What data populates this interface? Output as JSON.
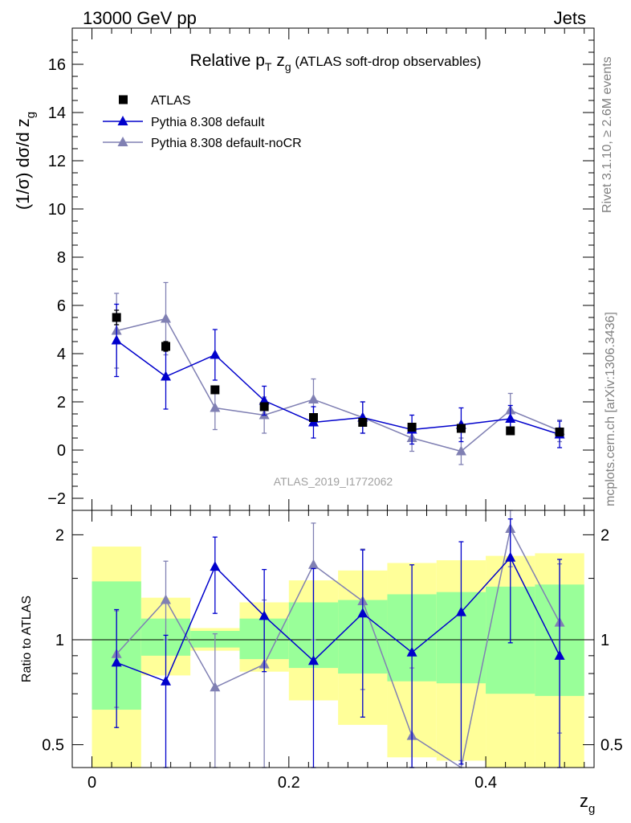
{
  "header": {
    "left": "13000 GeV pp",
    "right": "Jets"
  },
  "side_text": {
    "rivet": "Rivet 3.1.10, ≥ 2.6M events",
    "mcplots": "mcplots.cern.ch [arXiv:1306.3436]"
  },
  "watermark": "ATLAS_2019_I1772062",
  "colors": {
    "data": "#000000",
    "pythia_default": "#0000cc",
    "pythia_nocr": "#8080b3",
    "band_inner": "#99ff99",
    "band_outer": "#ffff99"
  },
  "chart_data": [
    {
      "type": "line",
      "title_main": "Relative p",
      "title_sub_T": "T",
      "title_z": " z",
      "title_sub_g": "g",
      "title_rest": " (ATLAS soft-drop observables)",
      "ylabel_main": "(1/σ) dσ/d z",
      "ylabel_sub": "g",
      "xlim": [
        -0.02,
        0.51
      ],
      "ylim": [
        -2.5,
        17.5
      ],
      "yticks": [
        -2,
        0,
        2,
        4,
        6,
        8,
        10,
        12,
        14,
        16
      ],
      "x": [
        0.025,
        0.075,
        0.125,
        0.175,
        0.225,
        0.275,
        0.325,
        0.375,
        0.425,
        0.475
      ],
      "series": [
        {
          "name": "ATLAS",
          "marker": "square",
          "values": [
            5.5,
            4.3,
            2.5,
            1.8,
            1.35,
            1.15,
            0.95,
            0.9,
            0.8,
            0.75
          ],
          "err": [
            0.3,
            0.2,
            0.15,
            0.15,
            0.12,
            0.12,
            0.1,
            0.1,
            0.1,
            0.1
          ]
        },
        {
          "name": "Pythia 8.308 default",
          "marker": "triangle",
          "values": [
            4.55,
            3.05,
            3.95,
            2.05,
            1.15,
            1.35,
            0.85,
            1.05,
            1.3,
            0.65
          ],
          "err": [
            1.5,
            1.35,
            1.05,
            0.6,
            0.65,
            0.65,
            0.6,
            0.7,
            0.55,
            0.55
          ]
        },
        {
          "name": "Pythia 8.308 default-noCR",
          "marker": "triangle",
          "values": [
            4.95,
            5.45,
            1.75,
            1.45,
            2.1,
            1.35,
            0.5,
            -0.05,
            1.65,
            0.8
          ],
          "err": [
            1.55,
            1.5,
            0.9,
            0.75,
            0.85,
            0.65,
            0.55,
            0.55,
            0.7,
            0.45
          ]
        }
      ]
    },
    {
      "type": "line",
      "xlabel_main": "z",
      "xlabel_sub": "g",
      "ylabel": "Ratio to ATLAS",
      "log_y": true,
      "ylim": [
        0.43,
        2.35
      ],
      "yticks": [
        0.5,
        1,
        2
      ],
      "xlim": [
        -0.02,
        0.51
      ],
      "xticks": [
        0,
        0.2,
        0.4
      ],
      "bins": [
        [
          0,
          0.05
        ],
        [
          0.05,
          0.1
        ],
        [
          0.1,
          0.15
        ],
        [
          0.15,
          0.2
        ],
        [
          0.2,
          0.25
        ],
        [
          0.25,
          0.3
        ],
        [
          0.3,
          0.35
        ],
        [
          0.35,
          0.4
        ],
        [
          0.4,
          0.45
        ],
        [
          0.45,
          0.5
        ]
      ],
      "band_inner": [
        [
          0.63,
          1.47
        ],
        [
          0.9,
          1.15
        ],
        [
          0.95,
          1.06
        ],
        [
          0.88,
          1.15
        ],
        [
          0.83,
          1.28
        ],
        [
          0.8,
          1.3
        ],
        [
          0.76,
          1.35
        ],
        [
          0.75,
          1.37
        ],
        [
          0.7,
          1.42
        ],
        [
          0.69,
          1.44
        ]
      ],
      "band_outer": [
        [
          0.25,
          1.85
        ],
        [
          0.79,
          1.32
        ],
        [
          0.93,
          1.08
        ],
        [
          0.81,
          1.28
        ],
        [
          0.67,
          1.48
        ],
        [
          0.57,
          1.58
        ],
        [
          0.46,
          1.66
        ],
        [
          0.45,
          1.69
        ],
        [
          0.41,
          1.74
        ],
        [
          0.41,
          1.77
        ]
      ],
      "x": [
        0.025,
        0.075,
        0.125,
        0.175,
        0.225,
        0.275,
        0.325,
        0.375,
        0.425,
        0.475
      ],
      "series": [
        {
          "name": "Pythia 8.308 default",
          "values": [
            0.86,
            0.76,
            1.62,
            1.17,
            0.87,
            1.19,
            0.92,
            1.2,
            1.72,
            0.9
          ],
          "err_lo": [
            0.3,
            0.42,
            0.43,
            0.36,
            0.5,
            0.59,
            0.55,
            0.76,
            0.74,
            0.55
          ],
          "err_hi": [
            0.36,
            0.27,
            0.35,
            0.42,
            0.73,
            0.62,
            0.72,
            0.71,
            0.5,
            0.8
          ]
        },
        {
          "name": "Pythia 8.308 default-noCR",
          "values": [
            0.91,
            1.3,
            0.73,
            0.85,
            1.64,
            1.29,
            0.53,
            0.35,
            2.08,
            1.12
          ],
          "err_lo": [
            0.27,
            0.3,
            0.37,
            0.45,
            0.64,
            0.57,
            0.3,
            0.1,
            0.46,
            0.58
          ],
          "err_hi": [
            0.3,
            0.38,
            0.31,
            0.45,
            0.52,
            0.53,
            0.3,
            0.1,
            0.28,
            0.53
          ]
        }
      ]
    }
  ]
}
